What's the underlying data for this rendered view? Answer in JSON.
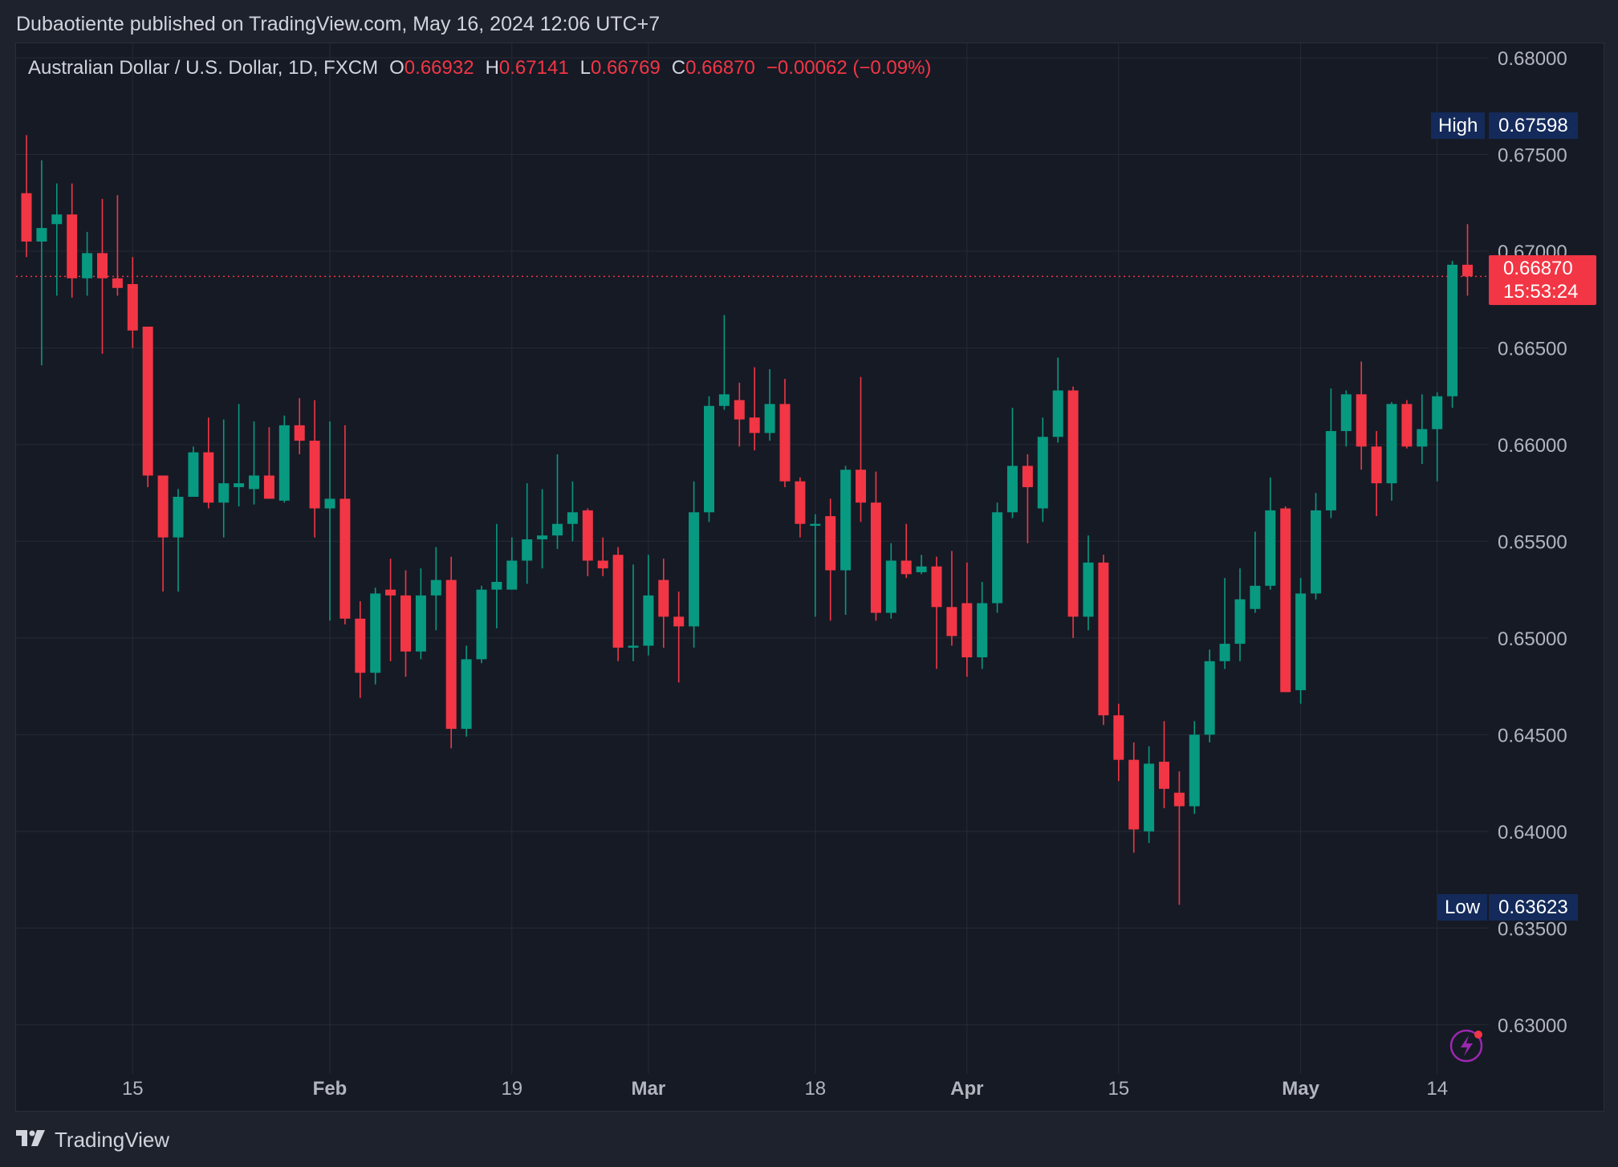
{
  "header": {
    "publisher_line": "Dubaotiente published on TradingView.com, May 16, 2024 12:06 UTC+7"
  },
  "legend": {
    "symbol": "Australian Dollar / U.S. Dollar, 1D, FXCM",
    "o_label": "O",
    "o_value": "0.66932",
    "h_label": "H",
    "h_value": "0.67141",
    "l_label": "L",
    "l_value": "0.66769",
    "c_label": "C",
    "c_value": "0.66870",
    "change": "−0.00062 (−0.09%)"
  },
  "markers": {
    "high_label": "High",
    "high_value": "0.67598",
    "low_label": "Low",
    "low_value": "0.63623",
    "last_price": "0.66870",
    "countdown": "15:53:24"
  },
  "footer": {
    "brand": "TradingView"
  },
  "colors": {
    "up": "#089981",
    "down": "#f23645",
    "background": "#161a25",
    "grid": "#262a35",
    "axis_text": "#b2b5be",
    "marker_bg": "#132a5a"
  },
  "chart_data": {
    "type": "candlestick",
    "title": "Australian Dollar / U.S. Dollar, 1D, FXCM",
    "ylim": [
      0.6275,
      0.6805
    ],
    "yticks": [
      "0.68000",
      "0.67500",
      "0.67000",
      "0.66500",
      "0.66000",
      "0.65500",
      "0.65000",
      "0.64500",
      "0.64000",
      "0.63500",
      "0.63000"
    ],
    "xticks": [
      {
        "label": "15",
        "index": 7,
        "bold": false
      },
      {
        "label": "Feb",
        "index": 20,
        "bold": true
      },
      {
        "label": "19",
        "index": 32,
        "bold": false
      },
      {
        "label": "Mar",
        "index": 41,
        "bold": true
      },
      {
        "label": "18",
        "index": 52,
        "bold": false
      },
      {
        "label": "Apr",
        "index": 62,
        "bold": true
      },
      {
        "label": "15",
        "index": 72,
        "bold": false
      },
      {
        "label": "May",
        "index": 84,
        "bold": true
      },
      {
        "label": "14",
        "index": 93,
        "bold": false
      }
    ],
    "candles": [
      {
        "o": 0.673,
        "h": 0.676,
        "l": 0.6697,
        "c": 0.6705
      },
      {
        "o": 0.6705,
        "h": 0.6747,
        "l": 0.6641,
        "c": 0.6712
      },
      {
        "o": 0.6714,
        "h": 0.6735,
        "l": 0.6677,
        "c": 0.6719
      },
      {
        "o": 0.6719,
        "h": 0.6735,
        "l": 0.6676,
        "c": 0.6686
      },
      {
        "o": 0.6686,
        "h": 0.671,
        "l": 0.6677,
        "c": 0.6699
      },
      {
        "o": 0.6699,
        "h": 0.6727,
        "l": 0.6647,
        "c": 0.6686
      },
      {
        "o": 0.6686,
        "h": 0.6729,
        "l": 0.6677,
        "c": 0.6681
      },
      {
        "o": 0.6683,
        "h": 0.6697,
        "l": 0.665,
        "c": 0.6659
      },
      {
        "o": 0.6661,
        "h": 0.6661,
        "l": 0.6578,
        "c": 0.6584
      },
      {
        "o": 0.6584,
        "h": 0.6584,
        "l": 0.6524,
        "c": 0.6552
      },
      {
        "o": 0.6552,
        "h": 0.6577,
        "l": 0.6524,
        "c": 0.6573
      },
      {
        "o": 0.6573,
        "h": 0.6599,
        "l": 0.6573,
        "c": 0.6596
      },
      {
        "o": 0.6596,
        "h": 0.6614,
        "l": 0.6567,
        "c": 0.657
      },
      {
        "o": 0.657,
        "h": 0.6613,
        "l": 0.6552,
        "c": 0.658
      },
      {
        "o": 0.6578,
        "h": 0.6621,
        "l": 0.6568,
        "c": 0.658
      },
      {
        "o": 0.6577,
        "h": 0.6612,
        "l": 0.6569,
        "c": 0.6584
      },
      {
        "o": 0.6584,
        "h": 0.6609,
        "l": 0.6572,
        "c": 0.6572
      },
      {
        "o": 0.6571,
        "h": 0.6615,
        "l": 0.657,
        "c": 0.661
      },
      {
        "o": 0.661,
        "h": 0.6624,
        "l": 0.6595,
        "c": 0.6602
      },
      {
        "o": 0.6602,
        "h": 0.6623,
        "l": 0.6552,
        "c": 0.6567
      },
      {
        "o": 0.6567,
        "h": 0.6612,
        "l": 0.6509,
        "c": 0.6572
      },
      {
        "o": 0.6572,
        "h": 0.661,
        "l": 0.6507,
        "c": 0.651
      },
      {
        "o": 0.651,
        "h": 0.6519,
        "l": 0.6469,
        "c": 0.6482
      },
      {
        "o": 0.6482,
        "h": 0.6526,
        "l": 0.6476,
        "c": 0.6523
      },
      {
        "o": 0.6525,
        "h": 0.6541,
        "l": 0.6488,
        "c": 0.6522
      },
      {
        "o": 0.6522,
        "h": 0.6535,
        "l": 0.648,
        "c": 0.6493
      },
      {
        "o": 0.6493,
        "h": 0.6536,
        "l": 0.6489,
        "c": 0.6522
      },
      {
        "o": 0.6522,
        "h": 0.6547,
        "l": 0.6504,
        "c": 0.653
      },
      {
        "o": 0.653,
        "h": 0.6542,
        "l": 0.6443,
        "c": 0.6453
      },
      {
        "o": 0.6453,
        "h": 0.6496,
        "l": 0.6449,
        "c": 0.6489
      },
      {
        "o": 0.6489,
        "h": 0.6527,
        "l": 0.6487,
        "c": 0.6525
      },
      {
        "o": 0.6525,
        "h": 0.6559,
        "l": 0.6505,
        "c": 0.6529
      },
      {
        "o": 0.6525,
        "h": 0.6552,
        "l": 0.6525,
        "c": 0.654
      },
      {
        "o": 0.654,
        "h": 0.658,
        "l": 0.6528,
        "c": 0.6551
      },
      {
        "o": 0.6551,
        "h": 0.6577,
        "l": 0.6536,
        "c": 0.6553
      },
      {
        "o": 0.6553,
        "h": 0.6595,
        "l": 0.6546,
        "c": 0.6559
      },
      {
        "o": 0.6559,
        "h": 0.6581,
        "l": 0.655,
        "c": 0.6565
      },
      {
        "o": 0.6566,
        "h": 0.6567,
        "l": 0.6532,
        "c": 0.654
      },
      {
        "o": 0.654,
        "h": 0.6552,
        "l": 0.6532,
        "c": 0.6536
      },
      {
        "o": 0.6543,
        "h": 0.6547,
        "l": 0.6488,
        "c": 0.6495
      },
      {
        "o": 0.6495,
        "h": 0.6538,
        "l": 0.6488,
        "c": 0.6496
      },
      {
        "o": 0.6496,
        "h": 0.6543,
        "l": 0.6491,
        "c": 0.6522
      },
      {
        "o": 0.653,
        "h": 0.6541,
        "l": 0.6495,
        "c": 0.6511
      },
      {
        "o": 0.6511,
        "h": 0.6524,
        "l": 0.6477,
        "c": 0.6506
      },
      {
        "o": 0.6506,
        "h": 0.6581,
        "l": 0.6495,
        "c": 0.6565
      },
      {
        "o": 0.6565,
        "h": 0.6625,
        "l": 0.656,
        "c": 0.662
      },
      {
        "o": 0.662,
        "h": 0.6667,
        "l": 0.6618,
        "c": 0.6626
      },
      {
        "o": 0.6623,
        "h": 0.6632,
        "l": 0.6599,
        "c": 0.6613
      },
      {
        "o": 0.6614,
        "h": 0.664,
        "l": 0.6597,
        "c": 0.6606
      },
      {
        "o": 0.6606,
        "h": 0.6639,
        "l": 0.6602,
        "c": 0.6621
      },
      {
        "o": 0.6621,
        "h": 0.6634,
        "l": 0.6578,
        "c": 0.6581
      },
      {
        "o": 0.6581,
        "h": 0.6583,
        "l": 0.6552,
        "c": 0.6559
      },
      {
        "o": 0.6558,
        "h": 0.6564,
        "l": 0.6511,
        "c": 0.6559
      },
      {
        "o": 0.6563,
        "h": 0.6572,
        "l": 0.6509,
        "c": 0.6535
      },
      {
        "o": 0.6535,
        "h": 0.6589,
        "l": 0.6512,
        "c": 0.6587
      },
      {
        "o": 0.6587,
        "h": 0.6635,
        "l": 0.656,
        "c": 0.657
      },
      {
        "o": 0.657,
        "h": 0.6586,
        "l": 0.6509,
        "c": 0.6513
      },
      {
        "o": 0.6513,
        "h": 0.6549,
        "l": 0.651,
        "c": 0.654
      },
      {
        "o": 0.654,
        "h": 0.6559,
        "l": 0.6531,
        "c": 0.6533
      },
      {
        "o": 0.6534,
        "h": 0.6543,
        "l": 0.6533,
        "c": 0.6537
      },
      {
        "o": 0.6537,
        "h": 0.6542,
        "l": 0.6484,
        "c": 0.6516
      },
      {
        "o": 0.6516,
        "h": 0.6545,
        "l": 0.6496,
        "c": 0.6501
      },
      {
        "o": 0.6518,
        "h": 0.6539,
        "l": 0.648,
        "c": 0.649
      },
      {
        "o": 0.649,
        "h": 0.6529,
        "l": 0.6484,
        "c": 0.6518
      },
      {
        "o": 0.6518,
        "h": 0.657,
        "l": 0.6513,
        "c": 0.6565
      },
      {
        "o": 0.6565,
        "h": 0.6619,
        "l": 0.6562,
        "c": 0.6589
      },
      {
        "o": 0.6589,
        "h": 0.6595,
        "l": 0.6549,
        "c": 0.6578
      },
      {
        "o": 0.6567,
        "h": 0.6614,
        "l": 0.656,
        "c": 0.6604
      },
      {
        "o": 0.6604,
        "h": 0.6645,
        "l": 0.6601,
        "c": 0.6628
      },
      {
        "o": 0.6628,
        "h": 0.663,
        "l": 0.65,
        "c": 0.6511
      },
      {
        "o": 0.6511,
        "h": 0.6553,
        "l": 0.6504,
        "c": 0.6539
      },
      {
        "o": 0.6539,
        "h": 0.6543,
        "l": 0.6455,
        "c": 0.646
      },
      {
        "o": 0.646,
        "h": 0.6466,
        "l": 0.6426,
        "c": 0.6437
      },
      {
        "o": 0.6437,
        "h": 0.6446,
        "l": 0.6389,
        "c": 0.6401
      },
      {
        "o": 0.64,
        "h": 0.6444,
        "l": 0.6394,
        "c": 0.6435
      },
      {
        "o": 0.6436,
        "h": 0.6457,
        "l": 0.6412,
        "c": 0.6422
      },
      {
        "o": 0.642,
        "h": 0.6431,
        "l": 0.6362,
        "c": 0.6413
      },
      {
        "o": 0.6413,
        "h": 0.6457,
        "l": 0.6409,
        "c": 0.645
      },
      {
        "o": 0.645,
        "h": 0.6494,
        "l": 0.6446,
        "c": 0.6488
      },
      {
        "o": 0.6488,
        "h": 0.6531,
        "l": 0.6484,
        "c": 0.6497
      },
      {
        "o": 0.6497,
        "h": 0.6536,
        "l": 0.6488,
        "c": 0.652
      },
      {
        "o": 0.6515,
        "h": 0.6555,
        "l": 0.6513,
        "c": 0.6527
      },
      {
        "o": 0.6527,
        "h": 0.6583,
        "l": 0.6525,
        "c": 0.6566
      },
      {
        "o": 0.6567,
        "h": 0.6568,
        "l": 0.6472,
        "c": 0.6472
      },
      {
        "o": 0.6473,
        "h": 0.6531,
        "l": 0.6466,
        "c": 0.6523
      },
      {
        "o": 0.6523,
        "h": 0.6575,
        "l": 0.652,
        "c": 0.6566
      },
      {
        "o": 0.6566,
        "h": 0.6629,
        "l": 0.6562,
        "c": 0.6607
      },
      {
        "o": 0.6607,
        "h": 0.6628,
        "l": 0.6599,
        "c": 0.6626
      },
      {
        "o": 0.6626,
        "h": 0.6643,
        "l": 0.6587,
        "c": 0.6599
      },
      {
        "o": 0.6599,
        "h": 0.6607,
        "l": 0.6563,
        "c": 0.658
      },
      {
        "o": 0.658,
        "h": 0.6622,
        "l": 0.6571,
        "c": 0.6621
      },
      {
        "o": 0.6621,
        "h": 0.6623,
        "l": 0.6598,
        "c": 0.6599
      },
      {
        "o": 0.6599,
        "h": 0.6626,
        "l": 0.659,
        "c": 0.6608
      },
      {
        "o": 0.6608,
        "h": 0.6627,
        "l": 0.6581,
        "c": 0.6625
      },
      {
        "o": 0.6625,
        "h": 0.6695,
        "l": 0.6619,
        "c": 0.6693
      },
      {
        "o": 0.6693,
        "h": 0.6714,
        "l": 0.6677,
        "c": 0.6687
      }
    ]
  }
}
